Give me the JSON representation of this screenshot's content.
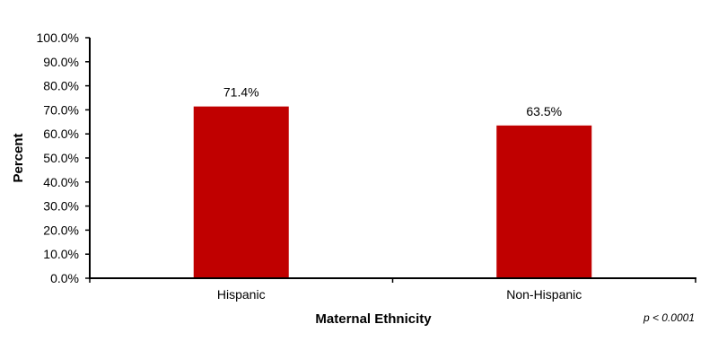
{
  "chart_data": {
    "type": "bar",
    "title": "",
    "xlabel": "Maternal Ethnicity",
    "ylabel": "Percent",
    "categories": [
      "Hispanic",
      "Non-Hispanic"
    ],
    "values": [
      71.4,
      63.5
    ],
    "data_labels": [
      "71.4%",
      "63.5%"
    ],
    "ylim": [
      0,
      100
    ],
    "yticks": [
      "0.0%",
      "10.0%",
      "20.0%",
      "30.0%",
      "40.0%",
      "50.0%",
      "60.0%",
      "70.0%",
      "80.0%",
      "90.0%",
      "100.0%"
    ],
    "grid": false,
    "legend": "none",
    "bar_color": "#C00000",
    "annotation": "p < 0.0001"
  }
}
